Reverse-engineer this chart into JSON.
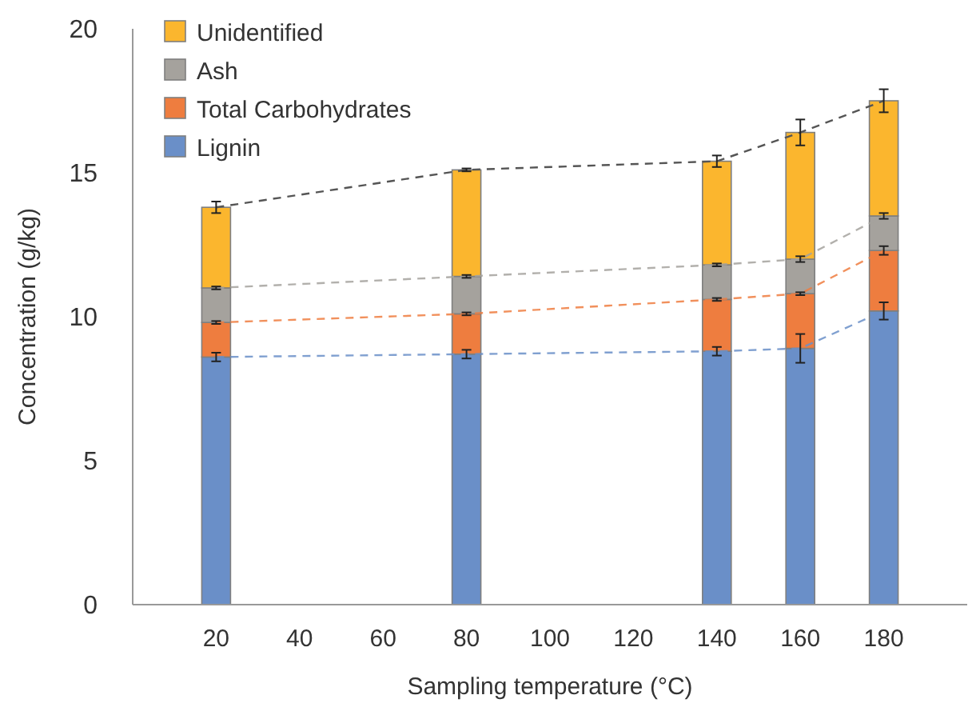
{
  "chart_data": {
    "type": "bar",
    "stacked": true,
    "xlabel": "Sampling temperature (°C)",
    "ylabel": "Concentration (g/kg)",
    "x": [
      20,
      80,
      140,
      160,
      180
    ],
    "xlim": [
      0,
      200
    ],
    "xticks": [
      20,
      40,
      60,
      80,
      100,
      120,
      140,
      160,
      180
    ],
    "ylim": [
      0,
      20
    ],
    "yticks": [
      0,
      5,
      10,
      15,
      20
    ],
    "grid": false,
    "legend": "top left",
    "line_style": "dashed",
    "series": [
      {
        "name": "Lignin",
        "color": "#6a8fc8",
        "values": [
          8.6,
          8.7,
          8.8,
          8.9,
          10.2
        ],
        "errors": [
          0.15,
          0.15,
          0.15,
          0.5,
          0.3
        ]
      },
      {
        "name": "Total Carbohydrates",
        "color": "#ee7d3f",
        "values": [
          1.2,
          1.4,
          1.8,
          1.9,
          2.1
        ],
        "errors": [
          0.05,
          0.05,
          0.05,
          0.05,
          0.15
        ]
      },
      {
        "name": "Ash",
        "color": "#a5a29d",
        "values": [
          1.2,
          1.3,
          1.2,
          1.2,
          1.2
        ],
        "errors": [
          0.05,
          0.05,
          0.05,
          0.1,
          0.1
        ]
      },
      {
        "name": "Unidentified",
        "color": "#fbb62e",
        "values": [
          2.8,
          3.7,
          3.6,
          4.4,
          4.0
        ],
        "errors": [
          0.2,
          0.05,
          0.2,
          0.45,
          0.4
        ]
      }
    ]
  }
}
